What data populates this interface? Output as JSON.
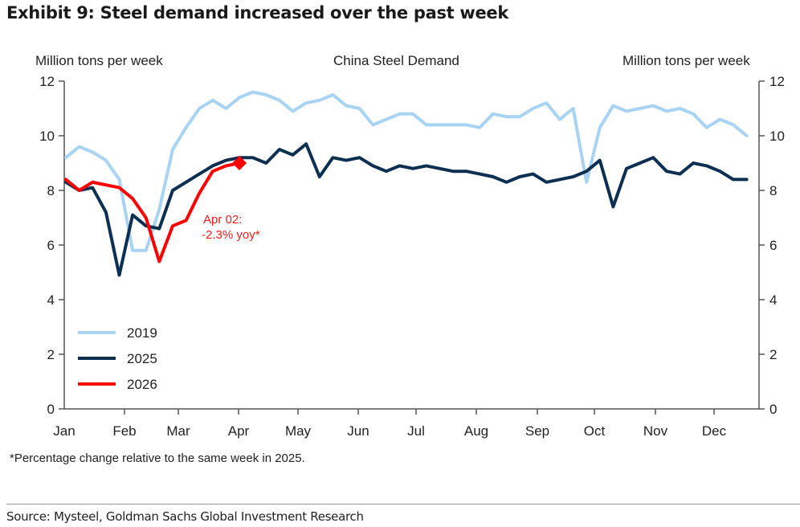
{
  "header": {
    "exhibit_title": "Exhibit 9: Steel demand increased over the past week"
  },
  "footnote": "*Percentage change relative to the same week in 2025.",
  "source": "Source: Mysteel, Goldman Sachs Global Investment Research",
  "colors": {
    "series_2019": "#a9d3f3",
    "series_2025": "#0d2f52",
    "series_2026": "#ff0000",
    "axis": "#555555"
  },
  "chart_data": {
    "type": "line",
    "title": "China Steel Demand",
    "ylabel_left": "Million tons per week",
    "ylabel_right": "Million tons per week",
    "xlabel": "",
    "ylim": [
      0,
      12
    ],
    "yticks": [
      "0",
      "2",
      "4",
      "6",
      "8",
      "10",
      "12"
    ],
    "xticks": [
      "Jan",
      "Feb",
      "Mar",
      "Apr",
      "May",
      "Jun",
      "Jul",
      "Aug",
      "Sep",
      "Oct",
      "Nov",
      "Dec"
    ],
    "x_unit": "week of year (0 = first week of Jan)",
    "grid": false,
    "legend_position": "bottom-left",
    "series": [
      {
        "name": "2019",
        "values": [
          9.2,
          9.6,
          9.4,
          9.1,
          8.4,
          5.8,
          5.8,
          7.3,
          9.5,
          10.3,
          11.0,
          11.3,
          11.0,
          11.4,
          11.6,
          11.5,
          11.3,
          10.9,
          11.2,
          11.3,
          11.5,
          11.1,
          11.0,
          10.4,
          10.6,
          10.8,
          10.8,
          10.4,
          10.4,
          10.4,
          10.4,
          10.3,
          10.8,
          10.7,
          10.7,
          11.0,
          11.2,
          10.6,
          11.0,
          8.3,
          10.3,
          11.1,
          10.9,
          11.0,
          11.1,
          10.9,
          11.0,
          10.8,
          10.3,
          10.6,
          10.4,
          10.0
        ]
      },
      {
        "name": "2025",
        "values": [
          8.3,
          8.0,
          8.1,
          7.2,
          4.9,
          7.1,
          6.7,
          6.6,
          8.0,
          8.3,
          8.6,
          8.9,
          9.1,
          9.2,
          9.2,
          9.0,
          9.5,
          9.3,
          9.7,
          8.5,
          9.2,
          9.1,
          9.2,
          8.9,
          8.7,
          8.9,
          8.8,
          8.9,
          8.8,
          8.7,
          8.7,
          8.6,
          8.5,
          8.3,
          8.5,
          8.6,
          8.3,
          8.4,
          8.5,
          8.7,
          9.1,
          7.4,
          8.8,
          9.0,
          9.2,
          8.7,
          8.6,
          9.0,
          8.9,
          8.7,
          8.4,
          8.4
        ]
      },
      {
        "name": "2026",
        "values": [
          8.4,
          8.0,
          8.3,
          8.2,
          8.1,
          7.7,
          7.0,
          5.4,
          6.7,
          6.9,
          7.9,
          8.7,
          8.9,
          9.0
        ]
      }
    ],
    "annotations": [
      {
        "series": "2026",
        "point_index": 13,
        "marker": "diamond",
        "text_lines": [
          "Apr 02:",
          "-2.3% yoy*"
        ]
      }
    ]
  }
}
